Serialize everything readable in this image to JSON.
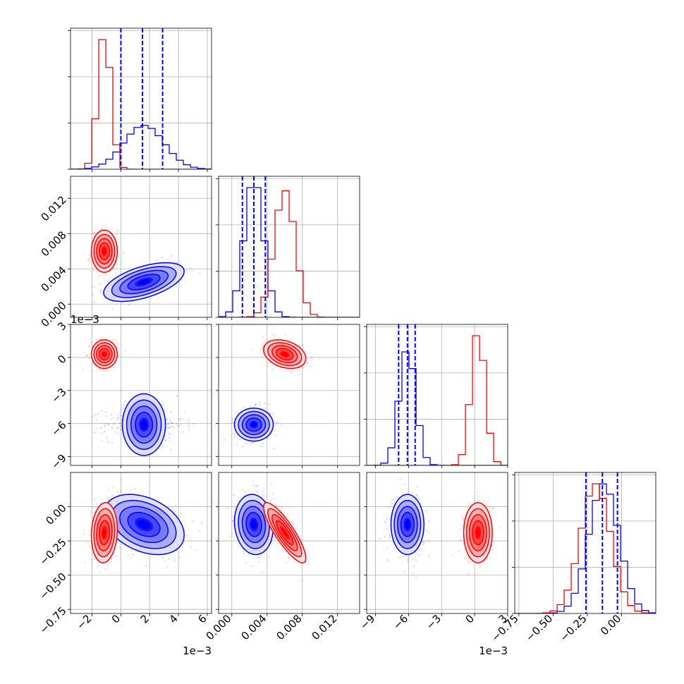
{
  "chart_data": {
    "type": "corner",
    "title": "",
    "parameters": [
      {
        "index": 0,
        "range": [
          -3.5,
          6.3
        ],
        "ticks": [
          -2,
          0,
          2,
          4,
          6
        ],
        "tick_labels": [
          "−2",
          "0",
          "2",
          "4",
          "6"
        ],
        "offset_label": "1e−3"
      },
      {
        "index": 1,
        "range": [
          -0.0015,
          0.0145
        ],
        "ticks": [
          0.0,
          0.004,
          0.008,
          0.012
        ],
        "tick_labels": [
          "0.000",
          "0.004",
          "0.008",
          "0.012"
        ],
        "offset_label": ""
      },
      {
        "index": 2,
        "range": [
          -9.8,
          3.0
        ],
        "ticks": [
          -9,
          -6,
          -3,
          0,
          3
        ],
        "tick_labels": [
          "−9",
          "−6",
          "−3",
          "0",
          "3"
        ],
        "offset_label": "1e−3"
      },
      {
        "index": 3,
        "range": [
          -0.78,
          0.25
        ],
        "ticks": [
          -0.75,
          -0.5,
          -0.25,
          0.0
        ],
        "tick_labels": [
          "−0.75",
          "−0.50",
          "−0.25",
          "0.00"
        ],
        "offset_label": ""
      }
    ],
    "series": [
      {
        "color": "#0000ff",
        "means": [
          1.6,
          0.0025,
          -6.1,
          -0.13
        ],
        "sds": [
          1.4,
          0.0011,
          0.75,
          0.11
        ],
        "quantiles": [
          [
            0.0,
            1.5,
            2.9
          ],
          [
            0.0012,
            0.0025,
            0.0038
          ],
          [
            -6.9,
            -6.1,
            -5.4
          ],
          [
            -0.26,
            -0.14,
            -0.03
          ]
        ],
        "correlations": [
          {
            "pair": [
              1,
              0
            ],
            "rho": 0.55
          },
          {
            "pair": [
              2,
              0
            ],
            "rho": 0.0
          },
          {
            "pair": [
              2,
              1
            ],
            "rho": 0.0
          },
          {
            "pair": [
              3,
              0
            ],
            "rho": -0.35
          },
          {
            "pair": [
              3,
              1
            ],
            "rho": -0.1
          },
          {
            "pair": [
              3,
              2
            ],
            "rho": 0.0
          }
        ]
      },
      {
        "color": "#ff0000",
        "means": [
          -1.15,
          0.006,
          0.3,
          -0.19
        ],
        "sds": [
          0.45,
          0.0012,
          0.65,
          0.11
        ],
        "quantiles": [],
        "correlations": [
          {
            "pair": [
              1,
              0
            ],
            "rho": 0.0
          },
          {
            "pair": [
              2,
              0
            ],
            "rho": 0.0
          },
          {
            "pair": [
              2,
              1
            ],
            "rho": -0.3
          },
          {
            "pair": [
              3,
              0
            ],
            "rho": 0.1
          },
          {
            "pair": [
              3,
              1
            ],
            "rho": -0.85
          },
          {
            "pair": [
              3,
              2
            ],
            "rho": 0.0
          }
        ]
      }
    ],
    "grid": true,
    "legend": "none"
  }
}
